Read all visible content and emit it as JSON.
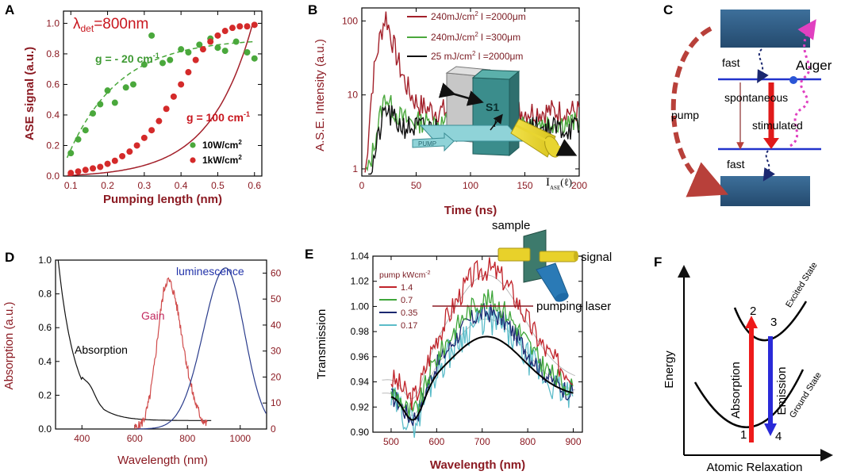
{
  "panel_labels": {
    "a": "A",
    "b": "B",
    "c": "C",
    "d": "D",
    "e": "E",
    "f": "F"
  },
  "colors": {
    "maroon": "#a3202a",
    "red": "#d42a2a",
    "green": "#4aa83c",
    "navy": "#1b2870",
    "blue": "#2233cc",
    "teal": "#5bbcc9",
    "gray": "#9a9a9a"
  },
  "chart_data": [
    {
      "id": "A",
      "type": "scatter",
      "title": "λdet=800nm",
      "title_main": "λ",
      "title_sub": "det",
      "title_rest": "=800nm",
      "xlabel": "Pumping length (nm)",
      "ylabel": "ASE signal (a.u.)",
      "xlim": [
        0.08,
        0.62
      ],
      "ylim": [
        0,
        1.08
      ],
      "xticks": [
        0.1,
        0.2,
        0.3,
        0.4,
        0.5,
        0.6
      ],
      "yticks": [
        0.0,
        0.2,
        0.4,
        0.6,
        0.8,
        1.0
      ],
      "annotation_green": "g = - 20 cm",
      "annotation_red": "g = 100 cm",
      "annotation_sup": "-1",
      "series": [
        {
          "name": "10W/cm",
          "sup": "2",
          "color": "#4aa83c",
          "x": [
            0.1,
            0.12,
            0.14,
            0.16,
            0.18,
            0.2,
            0.22,
            0.25,
            0.27,
            0.3,
            0.32,
            0.35,
            0.37,
            0.4,
            0.42,
            0.45,
            0.48,
            0.5,
            0.52,
            0.55,
            0.58,
            0.6
          ],
          "y": [
            0.15,
            0.24,
            0.3,
            0.41,
            0.47,
            0.56,
            0.48,
            0.58,
            0.6,
            0.73,
            0.92,
            0.74,
            0.76,
            0.83,
            0.81,
            0.86,
            0.9,
            0.84,
            0.82,
            0.88,
            0.81,
            0.77
          ]
        },
        {
          "name": "1kW/cm",
          "sup": "2",
          "color": "#d42a2a",
          "x": [
            0.1,
            0.12,
            0.14,
            0.16,
            0.18,
            0.2,
            0.22,
            0.24,
            0.26,
            0.28,
            0.3,
            0.32,
            0.34,
            0.36,
            0.38,
            0.4,
            0.42,
            0.44,
            0.46,
            0.48,
            0.5,
            0.52,
            0.54,
            0.56,
            0.58,
            0.6
          ],
          "y": [
            0.02,
            0.03,
            0.04,
            0.05,
            0.06,
            0.08,
            0.1,
            0.13,
            0.16,
            0.2,
            0.25,
            0.3,
            0.36,
            0.44,
            0.52,
            0.6,
            0.68,
            0.76,
            0.83,
            0.88,
            0.92,
            0.95,
            0.97,
            0.98,
            0.98,
            0.99
          ]
        }
      ]
    },
    {
      "id": "B",
      "type": "line",
      "yscale": "log",
      "xlabel": "Time (ns)",
      "ylabel": "A.S.E. Intensity (a.u.)",
      "xlim": [
        0,
        200
      ],
      "ylim": [
        0.8,
        150
      ],
      "xticks": [
        0,
        50,
        100,
        150,
        200
      ],
      "yticks": [
        1,
        10,
        100
      ],
      "inset_labels": {
        "s1": "S1",
        "pump": "PUMP",
        "l": "l",
        "iase": "I",
        "iase_sub": "ASE",
        "iase_paren": "(ℓ)"
      },
      "series": [
        {
          "name": "240mJ/cm",
          "sup": "2",
          "tail": " l =2000μm",
          "color": "#a3202a"
        },
        {
          "name": "240mJ/cm",
          "sup": "2",
          "tail": " l =300μm",
          "color": "#4aa83c"
        },
        {
          "name": "25  mJ/cm",
          "sup": "2",
          "tail": " l =2000μm",
          "color": "#111111"
        }
      ]
    },
    {
      "id": "D",
      "type": "line",
      "xlabel": "Wavelength (nm)",
      "ylabel": "Absorption (a.u.)",
      "xlim": [
        300,
        1100
      ],
      "ylim_left": [
        0,
        1.0
      ],
      "ylim_right": [
        0,
        65
      ],
      "xticks": [
        400,
        600,
        800,
        1000
      ],
      "yticks_left": [
        0.0,
        0.2,
        0.4,
        0.6,
        0.8,
        1.0
      ],
      "yticks_right": [
        0,
        10,
        20,
        30,
        40,
        50,
        60
      ],
      "series": [
        {
          "name": "Absorption",
          "color": "#111111"
        },
        {
          "name": "Gain",
          "color": "#d04b4b"
        },
        {
          "name": "luminescence",
          "color": "#2a3c8c"
        }
      ]
    },
    {
      "id": "E",
      "type": "line",
      "xlabel": "Wavelength (nm)",
      "ylabel": "Transmission",
      "xlim": [
        460,
        920
      ],
      "ylim": [
        0.9,
        1.04
      ],
      "xticks": [
        500,
        600,
        700,
        800,
        900
      ],
      "yticks": [
        0.9,
        0.92,
        0.94,
        0.96,
        0.98,
        1.0,
        1.02,
        1.04
      ],
      "legend_title": "pump kWcm",
      "legend_sup": "-2",
      "inset_labels": {
        "sample": "sample",
        "signal": "signal",
        "pumping": "pumping laser"
      },
      "series": [
        {
          "name": "1.4",
          "color": "#c0232a"
        },
        {
          "name": "0.7",
          "color": "#3fa63a"
        },
        {
          "name": "0.35",
          "color": "#1b2870"
        },
        {
          "name": "0.17",
          "color": "#5bbcc9"
        }
      ]
    }
  ],
  "diagram_c": {
    "fast_top": "fast",
    "fast_bottom": "fast",
    "auger": "Auger",
    "spontaneous": "spontaneous",
    "stimulated": "stimulated",
    "pump": "pump"
  },
  "diagram_f": {
    "ylabel": "Energy",
    "xlabel": "Atomic Relaxation",
    "excited": "Excited State",
    "ground": "Ground State",
    "absorption": "Absorption",
    "emission": "Emission",
    "n1": "1",
    "n2": "2",
    "n3": "3",
    "n4": "4"
  }
}
